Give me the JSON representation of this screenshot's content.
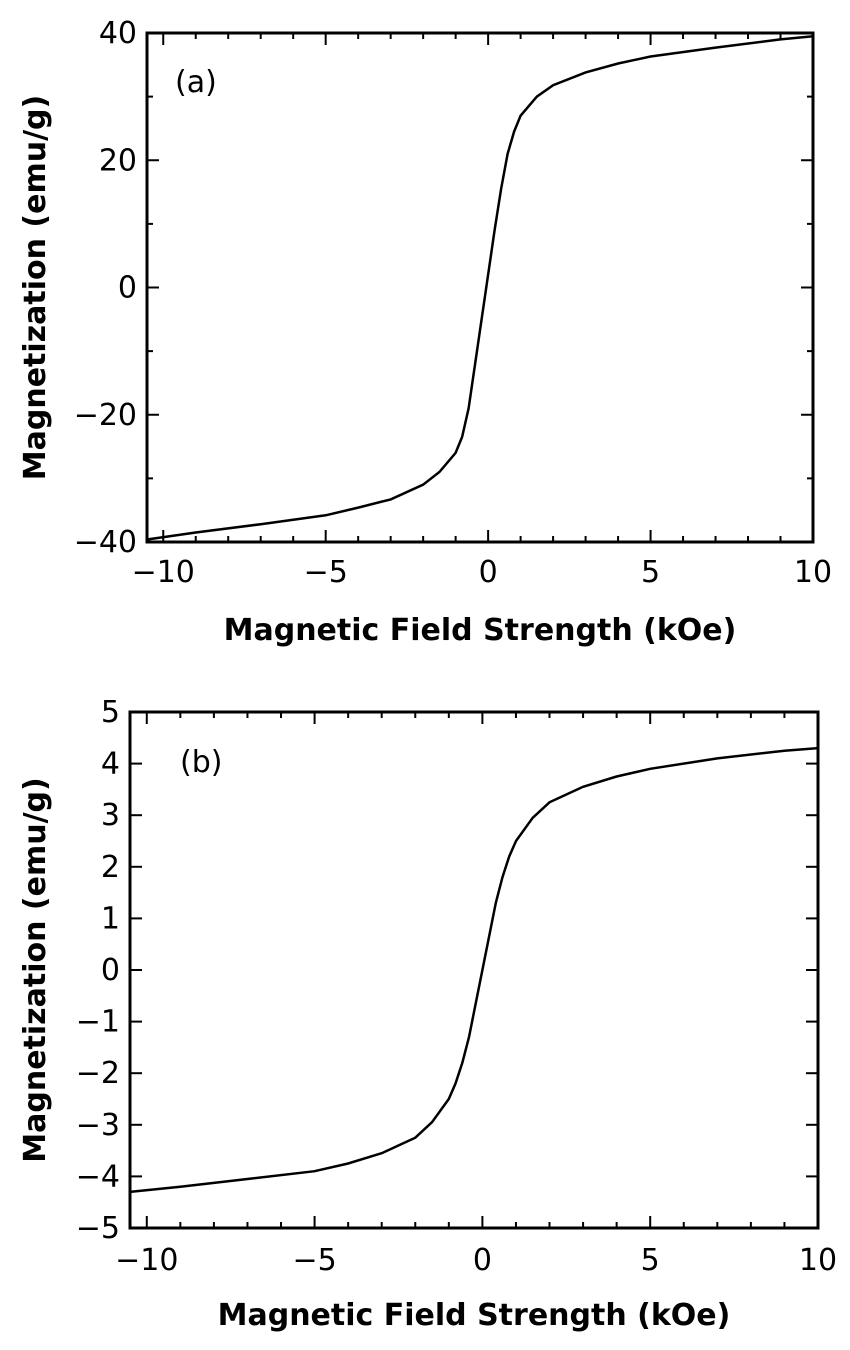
{
  "chart_data": [
    {
      "type": "line",
      "panel_label": "(a)",
      "xlabel": "Magnetic Field Strength (kOe)",
      "ylabel": "Magnetization (emu/g)",
      "xlim": [
        -10.5,
        10
      ],
      "ylim": [
        -40,
        40
      ],
      "xticks": [
        -10,
        -5,
        0,
        5,
        10
      ],
      "xtick_labels": [
        "−10",
        "−5",
        "0",
        "5",
        "10"
      ],
      "yticks": [
        -40,
        -20,
        0,
        20,
        40
      ],
      "ytick_labels": [
        "−40",
        "−20",
        "0",
        "20",
        "40"
      ],
      "grid": false,
      "series": [
        {
          "x": [
            -10.5,
            -9,
            -7,
            -5,
            -4,
            -3,
            -2,
            -1.5,
            -1,
            -0.8,
            -0.6,
            -0.4,
            -0.2,
            0,
            0.2,
            0.4,
            0.6,
            0.8,
            1,
            1.5,
            2,
            3,
            4,
            5,
            7,
            9,
            10
          ],
          "y": [
            -39.6,
            -38.5,
            -37.2,
            -35.8,
            -34.6,
            -33.3,
            -31.0,
            -29.0,
            -26.0,
            -23.5,
            -19.0,
            -12.0,
            -5.0,
            2.0,
            9.0,
            15.5,
            21.0,
            24.5,
            27.0,
            30.0,
            31.8,
            33.8,
            35.2,
            36.3,
            37.7,
            39.0,
            39.5
          ],
          "color": "#000000"
        }
      ]
    },
    {
      "type": "line",
      "panel_label": "(b)",
      "xlabel": "Magnetic Field Strength (kOe)",
      "ylabel": "Magnetization (emu/g)",
      "xlim": [
        -10.5,
        10
      ],
      "ylim": [
        -5,
        5
      ],
      "xticks": [
        -10,
        -5,
        0,
        5,
        10
      ],
      "xtick_labels": [
        "−10",
        "−5",
        "0",
        "5",
        "10"
      ],
      "yticks": [
        -5,
        -4,
        -3,
        -2,
        -1,
        0,
        1,
        2,
        3,
        4,
        5
      ],
      "ytick_labels": [
        "−5",
        "−4",
        "−3",
        "−2",
        "−1",
        "0",
        "1",
        "2",
        "3",
        "4",
        "5"
      ],
      "grid": false,
      "series": [
        {
          "x": [
            -10.5,
            -9,
            -7,
            -5,
            -4,
            -3,
            -2,
            -1.5,
            -1,
            -0.8,
            -0.6,
            -0.4,
            -0.2,
            0,
            0.2,
            0.4,
            0.6,
            0.8,
            1,
            1.5,
            2,
            3,
            4,
            5,
            7,
            9,
            10
          ],
          "y": [
            -4.3,
            -4.2,
            -4.05,
            -3.9,
            -3.75,
            -3.55,
            -3.25,
            -2.95,
            -2.5,
            -2.2,
            -1.8,
            -1.3,
            -0.65,
            0.0,
            0.65,
            1.3,
            1.8,
            2.2,
            2.5,
            2.95,
            3.25,
            3.55,
            3.75,
            3.9,
            4.1,
            4.25,
            4.3
          ],
          "color": "#000000"
        }
      ]
    }
  ]
}
